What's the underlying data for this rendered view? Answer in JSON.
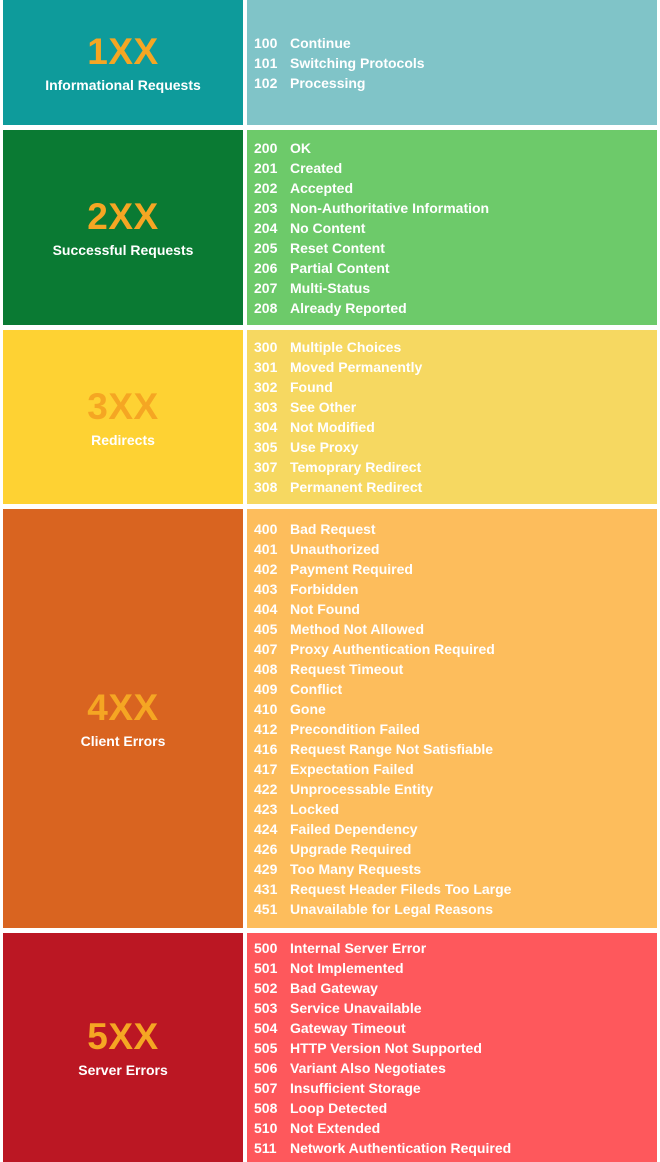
{
  "groups": [
    {
      "title": "1XX",
      "subtitle": "Informational Requests",
      "title_color": "#f5a623",
      "codes": [
        {
          "code": "100",
          "text": "Continue"
        },
        {
          "code": "101",
          "text": "Switching Protocols"
        },
        {
          "code": "102",
          "text": "Processing"
        }
      ]
    },
    {
      "title": "2XX",
      "subtitle": "Successful Requests",
      "title_color": "#f5a623",
      "codes": [
        {
          "code": "200",
          "text": "OK"
        },
        {
          "code": "201",
          "text": "Created"
        },
        {
          "code": "202",
          "text": "Accepted"
        },
        {
          "code": "203",
          "text": "Non-Authoritative Information"
        },
        {
          "code": "204",
          "text": "No Content"
        },
        {
          "code": "205",
          "text": "Reset Content"
        },
        {
          "code": "206",
          "text": "Partial Content"
        },
        {
          "code": "207",
          "text": "Multi-Status"
        },
        {
          "code": "208",
          "text": "Already Reported"
        }
      ]
    },
    {
      "title": "3XX",
      "subtitle": "Redirects",
      "title_color": "#f5a623",
      "codes": [
        {
          "code": "300",
          "text": "Multiple Choices"
        },
        {
          "code": "301",
          "text": "Moved Permanently"
        },
        {
          "code": "302",
          "text": "Found"
        },
        {
          "code": "303",
          "text": "See Other"
        },
        {
          "code": "304",
          "text": "Not Modified"
        },
        {
          "code": "305",
          "text": "Use Proxy"
        },
        {
          "code": "307",
          "text": "Temoprary Redirect"
        },
        {
          "code": "308",
          "text": "Permanent Redirect"
        }
      ]
    },
    {
      "title": "4XX",
      "subtitle": "Client Errors",
      "title_color": "#f5a623",
      "codes": [
        {
          "code": "400",
          "text": "Bad Request"
        },
        {
          "code": "401",
          "text": "Unauthorized"
        },
        {
          "code": "402",
          "text": "Payment Required"
        },
        {
          "code": "403",
          "text": "Forbidden"
        },
        {
          "code": "404",
          "text": "Not Found"
        },
        {
          "code": "405",
          "text": "Method Not Allowed"
        },
        {
          "code": "407",
          "text": "Proxy Authentication Required"
        },
        {
          "code": "408",
          "text": "Request Timeout"
        },
        {
          "code": "409",
          "text": "Conflict"
        },
        {
          "code": "410",
          "text": "Gone"
        },
        {
          "code": "412",
          "text": "Precondition Failed"
        },
        {
          "code": "416",
          "text": "Request Range Not Satisfiable"
        },
        {
          "code": "417",
          "text": "Expectation Failed"
        },
        {
          "code": "422",
          "text": "Unprocessable Entity"
        },
        {
          "code": "423",
          "text": "Locked"
        },
        {
          "code": "424",
          "text": "Failed Dependency"
        },
        {
          "code": "426",
          "text": "Upgrade Required"
        },
        {
          "code": "429",
          "text": "Too Many Requests"
        },
        {
          "code": "431",
          "text": "Request Header Fileds Too Large"
        },
        {
          "code": "451",
          "text": "Unavailable for Legal Reasons"
        }
      ]
    },
    {
      "title": "5XX",
      "subtitle": "Server Errors",
      "title_color": "#f5a623",
      "codes": [
        {
          "code": "500",
          "text": "Internal Server Error"
        },
        {
          "code": "501",
          "text": "Not Implemented"
        },
        {
          "code": "502",
          "text": "Bad Gateway"
        },
        {
          "code": "503",
          "text": "Service Unavailable"
        },
        {
          "code": "504",
          "text": "Gateway Timeout"
        },
        {
          "code": "505",
          "text": "HTTP Version Not Supported"
        },
        {
          "code": "506",
          "text": "Variant Also Negotiates"
        },
        {
          "code": "507",
          "text": "Insufficient Storage"
        },
        {
          "code": "508",
          "text": "Loop Detected"
        },
        {
          "code": "510",
          "text": "Not Extended"
        },
        {
          "code": "511",
          "text": "Network Authentication Required"
        }
      ]
    }
  ]
}
